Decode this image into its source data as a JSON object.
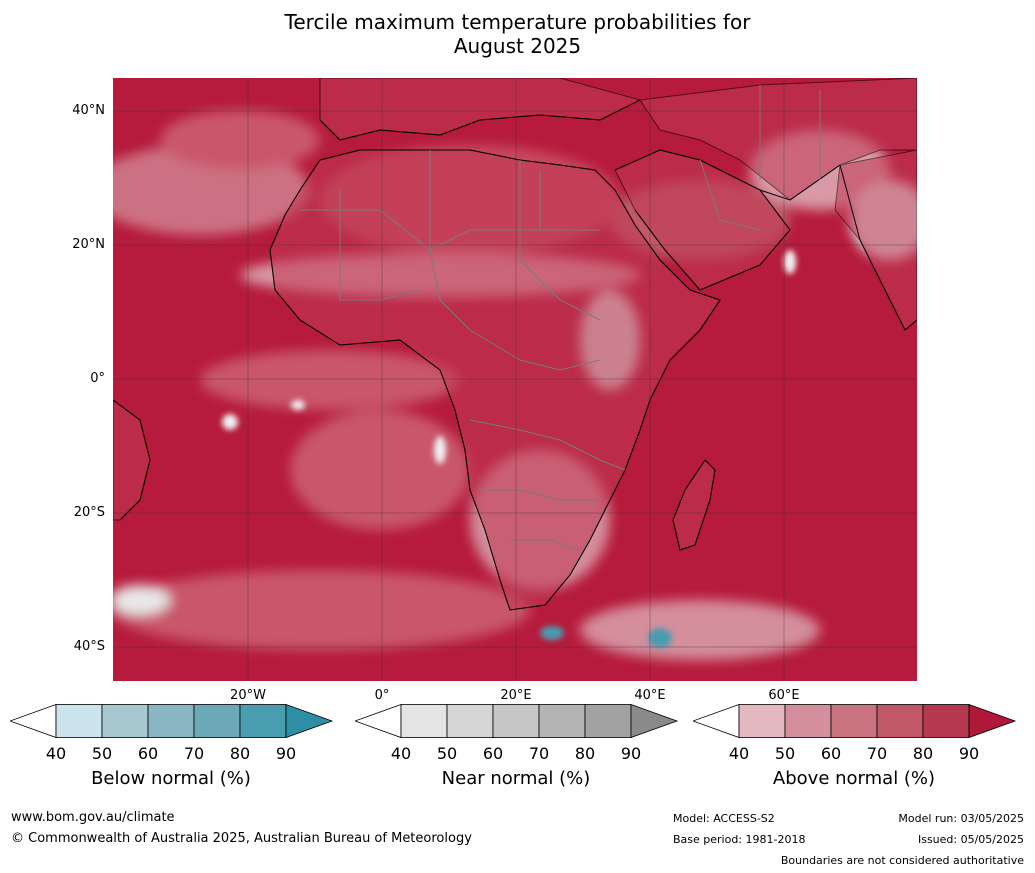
{
  "title": {
    "line1": "Tercile maximum temperature probabilities for",
    "line2": "August 2025"
  },
  "map": {
    "lat_labels": [
      "40°N",
      "20°N",
      "0°",
      "20°S",
      "40°S"
    ],
    "lon_labels": [
      "20°W",
      "0°",
      "20°E",
      "40°E",
      "60°E"
    ],
    "colors": {
      "ocean_base": "#b61a3c",
      "land_base": "#c13a55",
      "coast": "#000000",
      "borders": "#7a7a7a",
      "grid": "#333333"
    }
  },
  "colorbars": [
    {
      "label": "Below normal (%)",
      "ticks": [
        "40",
        "50",
        "60",
        "70",
        "80",
        "90"
      ],
      "colors": [
        "#ffffff",
        "#cbe3ea",
        "#a8c8d0",
        "#89b6c2",
        "#6ba9b7",
        "#4a9caf",
        "#2e8fa4"
      ]
    },
    {
      "label": "Near normal (%)",
      "ticks": [
        "40",
        "50",
        "60",
        "70",
        "80",
        "90"
      ],
      "colors": [
        "#ffffff",
        "#e4e4e4",
        "#d6d6d6",
        "#c6c6c6",
        "#b4b4b4",
        "#a2a2a2",
        "#8a8a8a"
      ]
    },
    {
      "label": "Above normal (%)",
      "ticks": [
        "40",
        "50",
        "60",
        "70",
        "80",
        "90"
      ],
      "colors": [
        "#ffffff",
        "#e3b8c1",
        "#d48e9c",
        "#c97380",
        "#c05868",
        "#b63850",
        "#b0183a"
      ]
    }
  ],
  "footer": {
    "website": "www.bom.gov.au/climate",
    "copyright": "© Commonwealth of Australia 2025, Australian Bureau of Meteorology",
    "model": "Model: ACCESS-S2",
    "base_period": "Base period: 1981-2018",
    "model_run": "Model run: 03/05/2025",
    "issued": "Issued: 05/05/2025",
    "disclaimer": "Boundaries are not considered authoritative"
  }
}
